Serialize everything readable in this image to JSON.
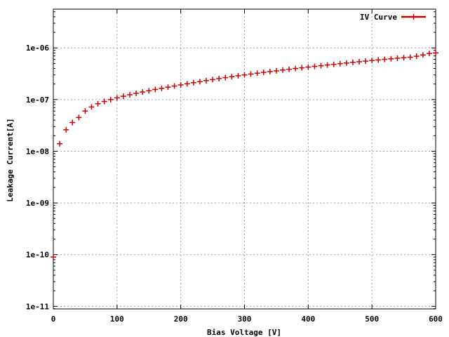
{
  "chart_data": {
    "type": "scatter",
    "xlabel": "Bias Voltage [V]",
    "ylabel": "Leakage Current[A]",
    "xlim": [
      0,
      600
    ],
    "ylim_log10": [
      -11.05,
      -5.25
    ],
    "y_scale": "log",
    "grid": true,
    "legend_position": "top-right",
    "x_ticks": [
      0,
      100,
      200,
      300,
      400,
      500,
      600
    ],
    "x_tick_labels": [
      "0",
      "100",
      "200",
      "300",
      "400",
      "500",
      "600"
    ],
    "y_ticks": [
      1e-11,
      1e-10,
      1e-09,
      1e-08,
      1e-07,
      1e-06
    ],
    "y_tick_labels": [
      "1e-11",
      "1e-10",
      "1e-09",
      "1e-08",
      "1e-07",
      "1e-06"
    ],
    "series": [
      {
        "name": "IV Curve",
        "color": "#cc0000",
        "marker": "plus",
        "x": [
          0,
          10,
          20,
          30,
          40,
          50,
          60,
          70,
          80,
          90,
          100,
          110,
          120,
          130,
          140,
          150,
          160,
          170,
          180,
          190,
          200,
          210,
          220,
          230,
          240,
          250,
          260,
          270,
          280,
          290,
          300,
          310,
          320,
          330,
          340,
          350,
          360,
          370,
          380,
          390,
          400,
          410,
          420,
          430,
          440,
          450,
          460,
          470,
          480,
          490,
          500,
          510,
          520,
          530,
          540,
          550,
          560,
          570,
          580,
          590,
          600
        ],
        "y": [
          9e-11,
          1.4e-08,
          2.6e-08,
          3.6e-08,
          4.5e-08,
          6e-08,
          7.2e-08,
          8.3e-08,
          9.2e-08,
          1e-07,
          1.08e-07,
          1.16e-07,
          1.24e-07,
          1.32e-07,
          1.4e-07,
          1.48e-07,
          1.57e-07,
          1.65e-07,
          1.74e-07,
          1.83e-07,
          1.92e-07,
          2.02e-07,
          2.12e-07,
          2.22e-07,
          2.33e-07,
          2.44e-07,
          2.55e-07,
          2.66e-07,
          2.77e-07,
          2.89e-07,
          3e-07,
          3.12e-07,
          3.24e-07,
          3.36e-07,
          3.48e-07,
          3.6e-07,
          3.73e-07,
          3.86e-07,
          3.99e-07,
          4.12e-07,
          4.25e-07,
          4.38e-07,
          4.52e-07,
          4.66e-07,
          4.8e-07,
          4.95e-07,
          5.1e-07,
          5.25e-07,
          5.4e-07,
          5.55e-07,
          5.7e-07,
          5.85e-07,
          6e-07,
          6.15e-07,
          6.3e-07,
          6.45e-07,
          6.6e-07,
          6.9e-07,
          7.3e-07,
          7.8e-07,
          8e-07
        ]
      }
    ]
  }
}
